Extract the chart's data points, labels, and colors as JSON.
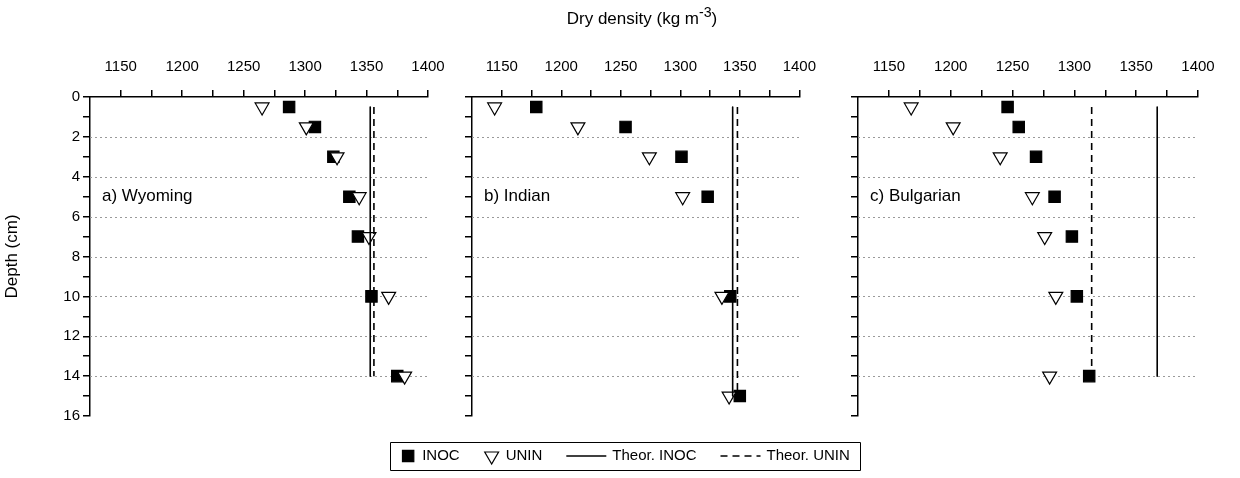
{
  "chart_data": [
    {
      "type": "scatter",
      "ylabel": "Depth (cm)",
      "annotations": [
        "a) Wyoming"
      ],
      "xlim": [
        1125,
        1400
      ],
      "xticks": [
        1150,
        {
          "value": 1175,
          "label": null
        },
        1200,
        {
          "value": 1225,
          "label": null
        },
        1250,
        {
          "value": 1275,
          "label": null
        },
        1300,
        {
          "value": 1325,
          "label": null
        },
        1350,
        {
          "value": 1375,
          "label": null
        },
        1400
      ],
      "ylim": [
        16,
        0
      ],
      "yticks": [
        0,
        {
          "value": 1,
          "label": null
        },
        2,
        {
          "value": 3,
          "label": null
        },
        4,
        {
          "value": 5,
          "label": null
        },
        6,
        {
          "value": 7,
          "label": null
        },
        8,
        {
          "value": 9,
          "label": null
        },
        10,
        {
          "value": 11,
          "label": null
        },
        12,
        {
          "value": 13,
          "label": null
        },
        14,
        {
          "value": 15,
          "label": null
        },
        16
      ],
      "grid": "y",
      "legend": "bottom",
      "series": [
        {
          "name": "INOC",
          "type": "scatter",
          "marker": "square",
          "color": "#000000",
          "x": [
            1287,
            1308,
            1323,
            1336,
            1343,
            1354,
            1375
          ],
          "values": [
            0.5,
            1.5,
            3,
            5,
            7,
            10,
            14
          ]
        },
        {
          "name": "UNIN",
          "type": "scatter",
          "marker": "triangle",
          "color": "#000000",
          "x": [
            1265,
            1301,
            1326,
            1344,
            1352,
            1368,
            1381
          ],
          "values": [
            0.5,
            1.5,
            3,
            5,
            7,
            10,
            14
          ]
        },
        {
          "name": "Theor. INOC",
          "type": "line",
          "marker": "none",
          "line_style": "solid",
          "color": "#000000",
          "x": [
            1353,
            1353
          ],
          "values": [
            0.5,
            14
          ]
        },
        {
          "name": "Theor. UNIN",
          "type": "line",
          "marker": "none",
          "line_style": "dashed",
          "color": "#000000",
          "x": [
            1356,
            1356
          ],
          "values": [
            0.5,
            14
          ]
        }
      ]
    },
    {
      "type": "scatter",
      "xlabel": "Dry density (kg m$^{-3}$)",
      "annotations": [
        "b) Indian"
      ],
      "xlim": [
        1125,
        1400
      ],
      "xticks": [
        1150,
        {
          "value": 1175,
          "label": null
        },
        1200,
        {
          "value": 1225,
          "label": null
        },
        1250,
        {
          "value": 1275,
          "label": null
        },
        1300,
        {
          "value": 1325,
          "label": null
        },
        1350,
        {
          "value": 1375,
          "label": null
        },
        1400
      ],
      "ylim": [
        16,
        0
      ],
      "yticks": [
        0,
        {
          "value": 1,
          "label": null
        },
        2,
        {
          "value": 3,
          "label": null
        },
        4,
        {
          "value": 5,
          "label": null
        },
        6,
        {
          "value": 7,
          "label": null
        },
        8,
        {
          "value": 9,
          "label": null
        },
        10,
        {
          "value": 11,
          "label": null
        },
        12,
        {
          "value": 13,
          "label": null
        },
        14,
        {
          "value": 15,
          "label": null
        },
        16
      ],
      "grid": "y",
      "tick_labels": "x",
      "series": [
        {
          "type": "scatter",
          "marker": "square",
          "color": "#000000",
          "x": [
            1179,
            1254,
            1301,
            1323,
            1342,
            1350
          ],
          "values": [
            0.5,
            1.5,
            3,
            5,
            10,
            15
          ]
        },
        {
          "type": "scatter",
          "marker": "triangle",
          "color": "#000000",
          "x": [
            1144,
            1214,
            1274,
            1302,
            1335,
            1341
          ],
          "values": [
            0.5,
            1.5,
            3,
            5,
            10,
            15
          ]
        },
        {
          "type": "line",
          "marker": "none",
          "line_style": "solid",
          "color": "#000000",
          "x": [
            1344,
            1344
          ],
          "values": [
            0.5,
            15
          ]
        },
        {
          "type": "line",
          "marker": "none",
          "line_style": "dashed",
          "color": "#000000",
          "x": [
            1348,
            1348
          ],
          "values": [
            0.5,
            15
          ]
        }
      ]
    },
    {
      "type": "scatter",
      "annotations": [
        "c) Bulgarian"
      ],
      "xlim": [
        1125,
        1400
      ],
      "xticks": [
        1150,
        {
          "value": 1175,
          "label": null
        },
        1200,
        {
          "value": 1225,
          "label": null
        },
        1250,
        {
          "value": 1275,
          "label": null
        },
        1300,
        {
          "value": 1325,
          "label": null
        },
        1350,
        {
          "value": 1375,
          "label": null
        },
        1400
      ],
      "ylim": [
        16,
        0
      ],
      "yticks": [
        0,
        {
          "value": 1,
          "label": null
        },
        2,
        {
          "value": 3,
          "label": null
        },
        4,
        {
          "value": 5,
          "label": null
        },
        6,
        {
          "value": 7,
          "label": null
        },
        8,
        {
          "value": 9,
          "label": null
        },
        10,
        {
          "value": 11,
          "label": null
        },
        12,
        {
          "value": 13,
          "label": null
        },
        14,
        {
          "value": 15,
          "label": null
        },
        16
      ],
      "grid": "y",
      "tick_labels": "x",
      "series": [
        {
          "type": "scatter",
          "marker": "square",
          "color": "#000000",
          "x": [
            1246,
            1255,
            1269,
            1284,
            1298,
            1302,
            1312
          ],
          "values": [
            0.5,
            1.5,
            3,
            5,
            7,
            10,
            14
          ]
        },
        {
          "type": "scatter",
          "marker": "triangle",
          "color": "#000000",
          "x": [
            1168,
            1202,
            1240,
            1266,
            1276,
            1285,
            1280
          ],
          "values": [
            0.5,
            1.5,
            3,
            5,
            7,
            10,
            14
          ]
        },
        {
          "type": "line",
          "marker": "none",
          "line_style": "solid",
          "color": "#000000",
          "x": [
            1367,
            1367
          ],
          "values": [
            0.5,
            14
          ]
        },
        {
          "type": "line",
          "marker": "none",
          "line_style": "dashed",
          "color": "#000000",
          "x": [
            1314,
            1314
          ],
          "values": [
            0.5,
            14
          ]
        }
      ]
    }
  ]
}
